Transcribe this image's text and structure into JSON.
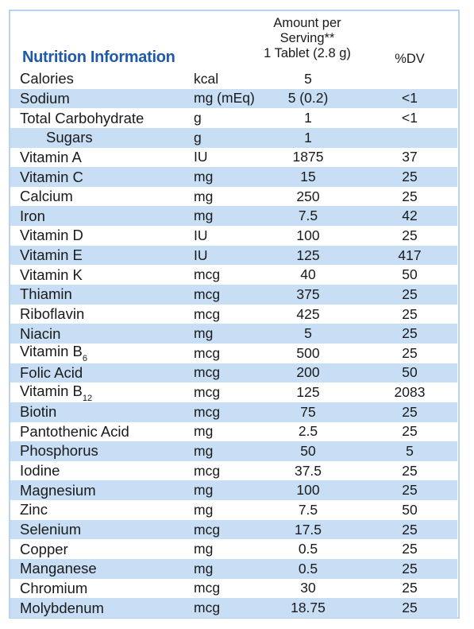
{
  "title": "Nutrition Information",
  "headers": {
    "amount_line1": "Amount per",
    "amount_line2": "Serving**",
    "amount_line3": "1 Tablet (2.8 g)",
    "dv": "%DV"
  },
  "rows": [
    {
      "name": "Calories",
      "unit": "kcal",
      "amount": "5",
      "dv": ""
    },
    {
      "name": "Sodium",
      "unit": "mg (mEq)",
      "amount": "5 (0.2)",
      "dv": "<1"
    },
    {
      "name": "Total Carbohydrate",
      "unit": "g",
      "amount": "1",
      "dv": "<1"
    },
    {
      "name": "Sugars",
      "unit": "g",
      "amount": "1",
      "dv": "",
      "indent": true
    },
    {
      "name": "Vitamin A",
      "unit": "IU",
      "amount": "1875",
      "dv": "37"
    },
    {
      "name": "Vitamin C",
      "unit": "mg",
      "amount": "15",
      "dv": "25"
    },
    {
      "name": "Calcium",
      "unit": "mg",
      "amount": "250",
      "dv": "25"
    },
    {
      "name": "Iron",
      "unit": "mg",
      "amount": "7.5",
      "dv": "42"
    },
    {
      "name": "Vitamin D",
      "unit": "IU",
      "amount": "100",
      "dv": "25"
    },
    {
      "name": "Vitamin E",
      "unit": "IU",
      "amount": "125",
      "dv": "417"
    },
    {
      "name": "Vitamin K",
      "unit": "mcg",
      "amount": "40",
      "dv": "50"
    },
    {
      "name": "Thiamin",
      "unit": "mcg",
      "amount": "375",
      "dv": "25"
    },
    {
      "name": "Riboflavin",
      "unit": "mcg",
      "amount": "425",
      "dv": "25"
    },
    {
      "name": "Niacin",
      "unit": "mg",
      "amount": "5",
      "dv": "25"
    },
    {
      "name": "Vitamin B",
      "sub": "6",
      "unit": "mcg",
      "amount": "500",
      "dv": "25"
    },
    {
      "name": "Folic Acid",
      "unit": "mcg",
      "amount": "200",
      "dv": "50"
    },
    {
      "name": "Vitamin B",
      "sub": "12",
      "unit": "mcg",
      "amount": "125",
      "dv": "2083"
    },
    {
      "name": "Biotin",
      "unit": "mcg",
      "amount": "75",
      "dv": "25"
    },
    {
      "name": "Pantothenic Acid",
      "unit": "mg",
      "amount": "2.5",
      "dv": "25"
    },
    {
      "name": "Phosphorus",
      "unit": "mg",
      "amount": "50",
      "dv": "5"
    },
    {
      "name": "Iodine",
      "unit": "mcg",
      "amount": "37.5",
      "dv": "25"
    },
    {
      "name": "Magnesium",
      "unit": "mg",
      "amount": "100",
      "dv": "25"
    },
    {
      "name": "Zinc",
      "unit": "mg",
      "amount": "7.5",
      "dv": "50"
    },
    {
      "name": "Selenium",
      "unit": "mcg",
      "amount": "17.5",
      "dv": "25"
    },
    {
      "name": "Copper",
      "unit": "mg",
      "amount": "0.5",
      "dv": "25"
    },
    {
      "name": "Manganese",
      "unit": "mg",
      "amount": "0.5",
      "dv": "25"
    },
    {
      "name": "Chromium",
      "unit": "mcg",
      "amount": "30",
      "dv": "25"
    },
    {
      "name": "Molybdenum",
      "unit": "mcg",
      "amount": "18.75",
      "dv": "25"
    }
  ],
  "colors": {
    "title": "#1f5aa8",
    "row_shade": "#c7def5",
    "border": "#b7d3ef"
  }
}
